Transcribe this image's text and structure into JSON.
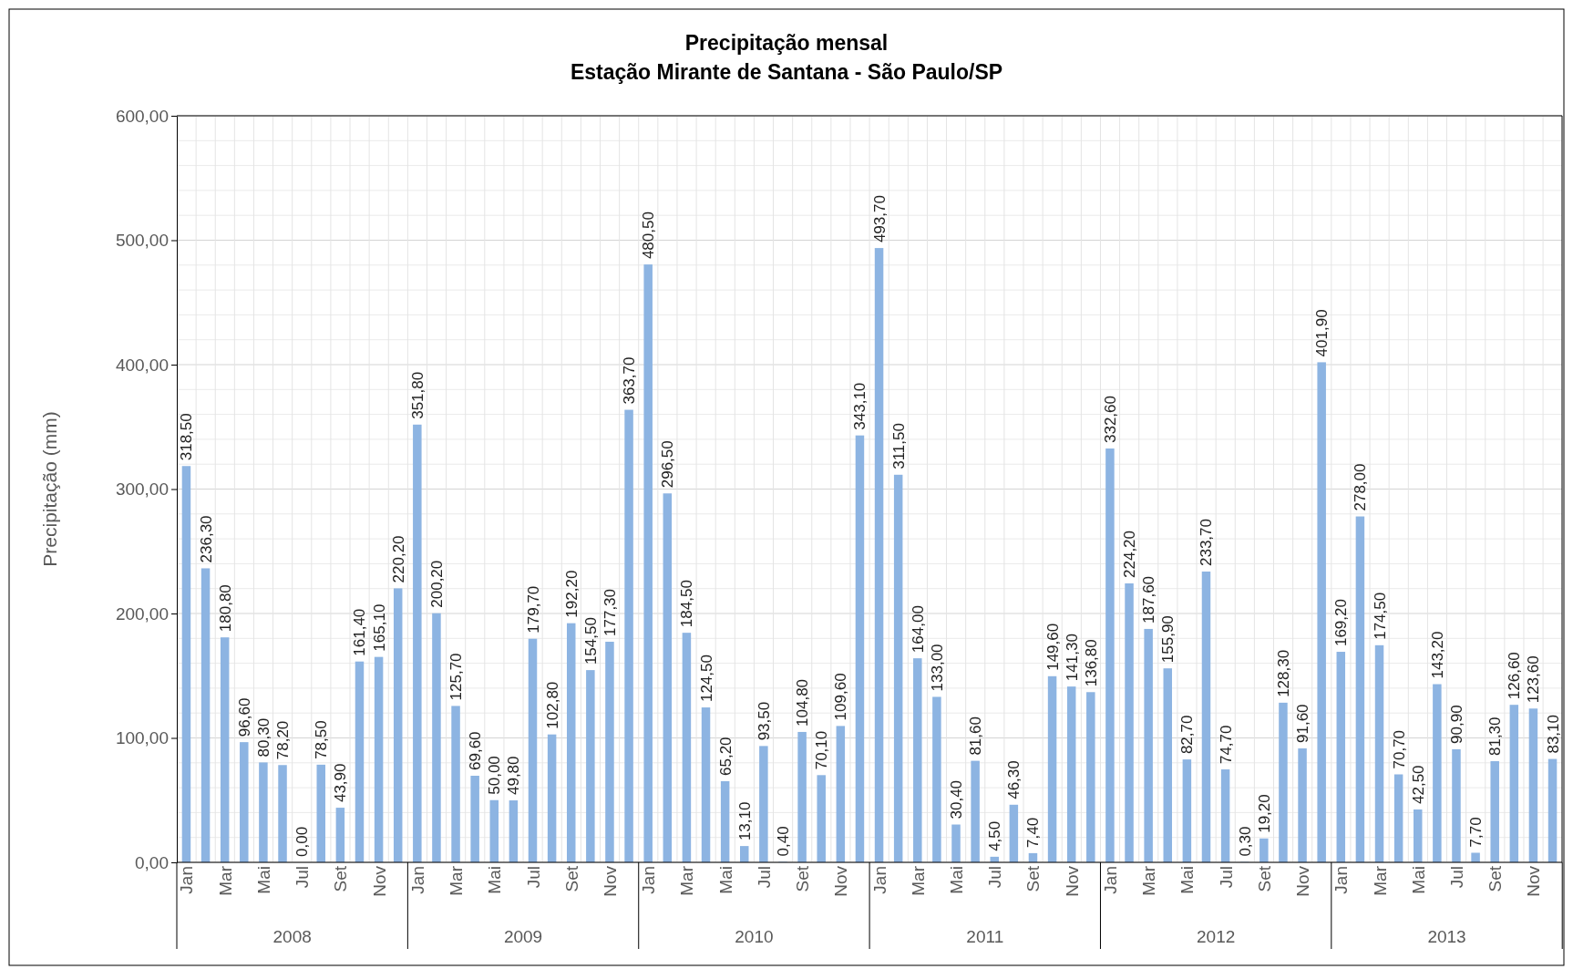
{
  "chart_data": {
    "type": "bar",
    "title": "Precipitação mensal",
    "subtitle": "Estação Mirante de Santana - São Paulo/SP",
    "ylabel": "Precipitação (mm)",
    "categories": [
      "Jan",
      null,
      "Mar",
      null,
      "Mai",
      null,
      "Jul",
      null,
      "Set",
      null,
      "Nov",
      null,
      "Jan",
      null,
      "Mar",
      null,
      "Mai",
      null,
      "Jul",
      null,
      "Set",
      null,
      "Nov",
      null,
      "Jan",
      null,
      "Mar",
      null,
      "Mai",
      null,
      "Jul",
      null,
      "Set",
      null,
      "Nov",
      null,
      "Jan",
      null,
      "Mar",
      null,
      "Mai",
      null,
      "Jul",
      null,
      "Set",
      null,
      "Nov",
      null,
      "Jan",
      null,
      "Mar",
      null,
      "Mai",
      null,
      "Jul",
      null,
      "Set",
      null,
      "Nov",
      null,
      "Jan",
      null,
      "Mar",
      null,
      "Mai",
      null,
      "Jul",
      null,
      "Set",
      null,
      "Nov",
      null
    ],
    "annotations": [
      "2008",
      "2009",
      "2010",
      "2011",
      "2012",
      "2013"
    ],
    "color": "#8db4e2",
    "values": [
      318.5,
      236.3,
      180.8,
      96.6,
      80.3,
      78.2,
      0.0,
      78.5,
      43.9,
      161.4,
      165.1,
      220.2,
      351.8,
      200.2,
      125.7,
      69.6,
      50.0,
      49.8,
      179.7,
      102.8,
      192.2,
      154.5,
      177.3,
      363.7,
      480.5,
      296.5,
      184.5,
      124.5,
      65.2,
      13.1,
      93.5,
      0.4,
      104.8,
      70.1,
      109.6,
      343.1,
      493.7,
      311.5,
      164.0,
      133.0,
      30.4,
      81.6,
      4.5,
      46.3,
      7.4,
      149.6,
      141.3,
      136.8,
      332.6,
      224.2,
      187.6,
      155.9,
      82.7,
      233.7,
      74.7,
      0.3,
      19.2,
      128.3,
      91.6,
      401.9,
      169.2,
      278.0,
      174.5,
      70.7,
      42.5,
      143.2,
      90.9,
      7.7,
      81.3,
      126.6,
      123.6,
      83.1
    ],
    "value_labels": [
      "318,50",
      "236,30",
      "180,80",
      "96,60",
      "80,30",
      "78,20",
      "0,00",
      "78,50",
      "43,90",
      "161,40",
      "165,10",
      "220,20",
      "351,80",
      "200,20",
      "125,70",
      "69,60",
      "50,00",
      "49,80",
      "179,70",
      "102,80",
      "192,20",
      "154,50",
      "177,30",
      "363,70",
      "480,50",
      "296,50",
      "184,50",
      "124,50",
      "65,20",
      "13,10",
      "93,50",
      "0,40",
      "104,80",
      "70,10",
      "109,60",
      "343,10",
      "493,70",
      "311,50",
      "164,00",
      "133,00",
      "30,40",
      "81,60",
      "4,50",
      "46,30",
      "7,40",
      "149,60",
      "141,30",
      "136,80",
      "332,60",
      "224,20",
      "187,60",
      "155,90",
      "82,70",
      "233,70",
      "74,70",
      "0,30",
      "19,20",
      "128,30",
      "91,60",
      "401,90",
      "169,20",
      "278,00",
      "174,50",
      "70,70",
      "42,50",
      "143,20",
      "90,90",
      "7,70",
      "81,30",
      "126,60",
      "123,60",
      "83,10"
    ],
    "ylim": [
      0,
      600
    ],
    "yticks": [
      {
        "value": 0,
        "label": "0,00"
      },
      {
        "value": 100,
        "label": "100,00"
      },
      {
        "value": 200,
        "label": "200,00"
      },
      {
        "value": 300,
        "label": "300,00"
      },
      {
        "value": 400,
        "label": "400,00"
      },
      {
        "value": 500,
        "label": "500,00"
      },
      {
        "value": 600,
        "label": "600,00"
      }
    ],
    "grid": true
  }
}
